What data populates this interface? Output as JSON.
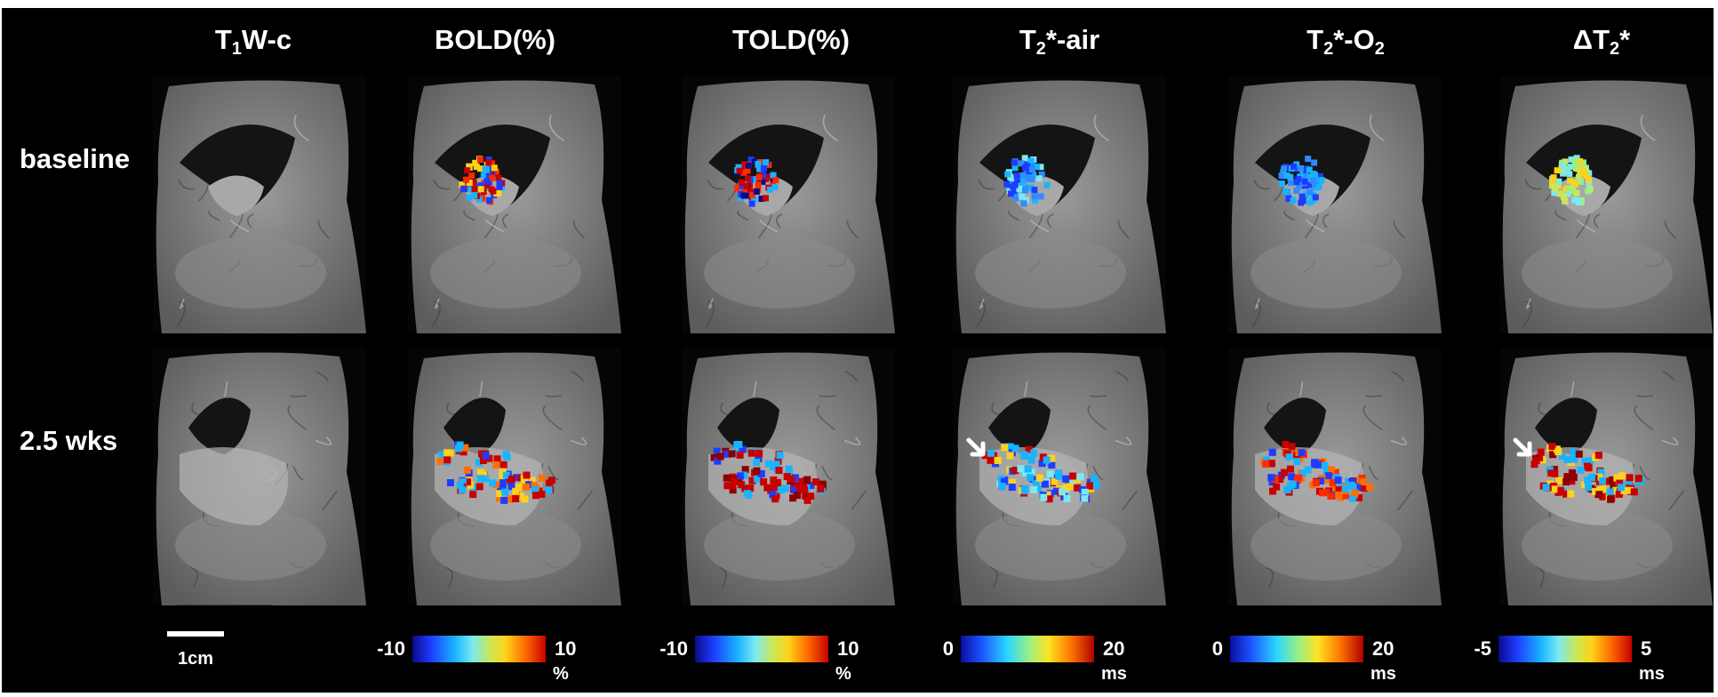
{
  "columns": [
    {
      "prefix": "T",
      "sub": "1",
      "suffix": "W-c"
    },
    {
      "prefix": "BOLD(%)",
      "sub": "",
      "suffix": ""
    },
    {
      "prefix": "TOLD(%)",
      "sub": "",
      "suffix": ""
    },
    {
      "prefix": "T",
      "sub": "2",
      "suffix": "*-air"
    },
    {
      "prefix": "T",
      "sub": "2",
      "suffix": "*-O",
      "sub2": "2"
    },
    {
      "prefix": "ΔT",
      "sub": "2",
      "suffix": "*"
    }
  ],
  "rows": [
    "baseline",
    "2.5 wks"
  ],
  "colorbars": [
    {
      "min": "-10",
      "max": "10",
      "unit": "%"
    },
    {
      "min": "-10",
      "max": "10",
      "unit": "%"
    },
    {
      "min": "0",
      "max": "20",
      "unit": "ms"
    },
    {
      "min": "0",
      "max": "20",
      "unit": "ms"
    },
    {
      "min": "-5",
      "max": "5",
      "unit": "ms"
    }
  ],
  "scale_bar": {
    "label": "1cm"
  },
  "colors": {
    "background": "#000000",
    "text": "#ffffff"
  }
}
